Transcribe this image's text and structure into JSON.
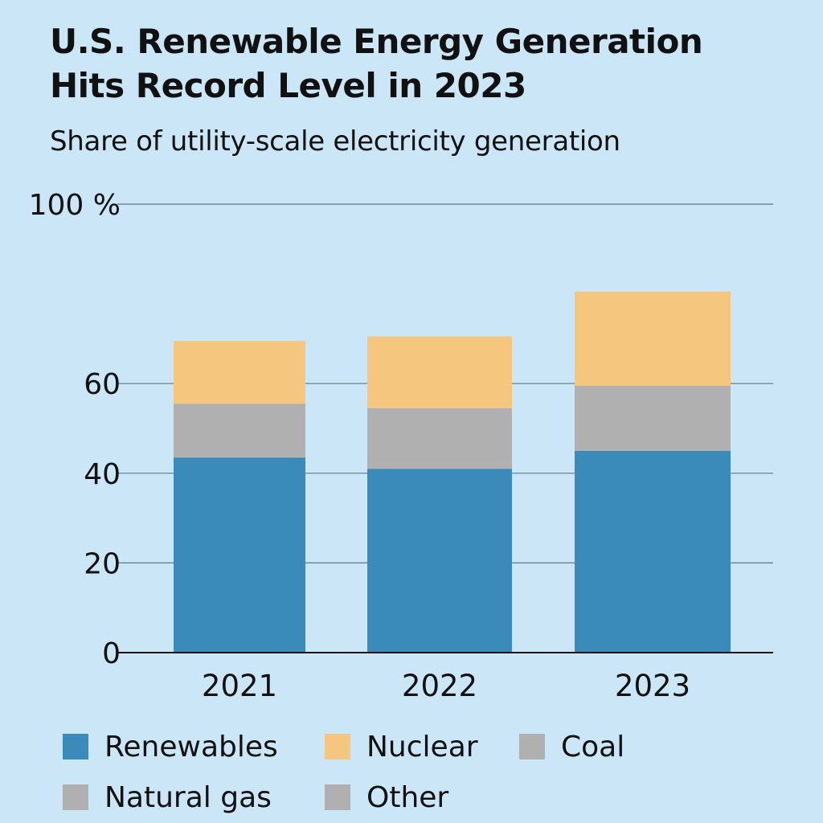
{
  "chart_data": {
    "type": "bar",
    "stacked": true,
    "title": "U.S. Renewable Energy Generation Hits Record Level in 2023",
    "subtitle": "Share of utility-scale electricity generation",
    "categories": [
      "2021",
      "2022",
      "2023"
    ],
    "ylim": [
      0,
      100
    ],
    "yticks": [
      {
        "value": 0,
        "label": "0"
      },
      {
        "value": 20,
        "label": "20"
      },
      {
        "value": 40,
        "label": "40"
      },
      {
        "value": 60,
        "label": "60"
      },
      {
        "value": 100,
        "label": "100 %"
      }
    ],
    "grid": true,
    "legend_position": "bottom",
    "series": [
      {
        "name": "Renewables",
        "color": "#3a8aba",
        "values": [
          43.5,
          41,
          45
        ]
      },
      {
        "name": "Coal",
        "color": "#b0b0b0",
        "values": [
          12,
          13.5,
          14.5
        ]
      },
      {
        "name": "Nuclear",
        "color": "#f5c67d",
        "values": [
          14,
          16,
          21
        ]
      }
    ],
    "legend": [
      {
        "name": "Renewables",
        "color": "#3a8aba"
      },
      {
        "name": "Nuclear",
        "color": "#f5c67d"
      },
      {
        "name": "Coal",
        "color": "#b0b0b0"
      },
      {
        "name": "Natural gas",
        "color": "#b0b0b0"
      },
      {
        "name": "Other",
        "color": "#b0b0b0"
      }
    ]
  }
}
